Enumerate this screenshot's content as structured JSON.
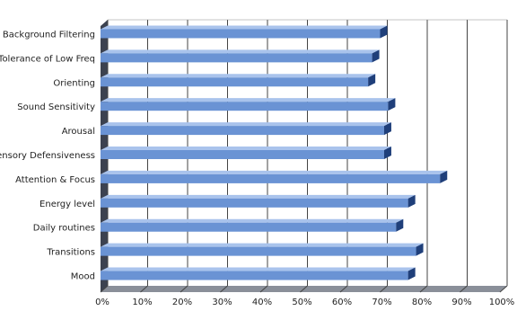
{
  "chart_data": {
    "type": "bar",
    "orientation": "horizontal",
    "three_d": true,
    "categories": [
      "Background Filtering",
      "Tolerance of Low Freq",
      "Orienting",
      "Sound Sensitivity",
      "Arousal",
      "Sensory Defensiveness",
      "Attention & Focus",
      "Energy level",
      "Daily routines",
      "Transitions",
      "Mood"
    ],
    "values": [
      70,
      68,
      67,
      72,
      71,
      71,
      85,
      77,
      74,
      79,
      77
    ],
    "xlim": [
      0,
      100
    ],
    "xticks": [
      "0%",
      "10%",
      "20%",
      "30%",
      "40%",
      "50%",
      "60%",
      "70%",
      "80%",
      "90%",
      "100%"
    ],
    "grid": true,
    "colors": {
      "bar_front": "#6a93d4",
      "bar_top": "#a9c3ec",
      "bar_end": "#1f3f7a",
      "wall": "#3c4250",
      "gridline": "#444444"
    }
  }
}
